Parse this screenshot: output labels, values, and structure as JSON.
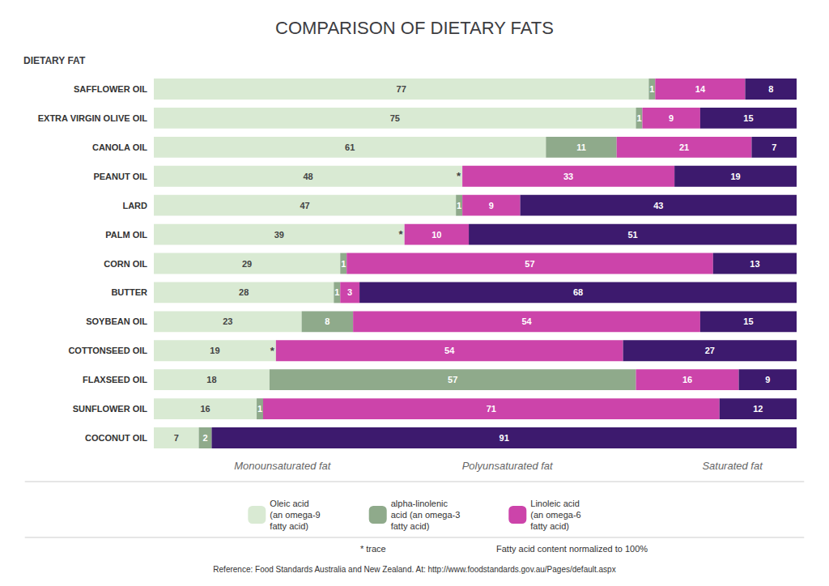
{
  "chart_data": {
    "type": "bar",
    "orientation": "horizontal",
    "stacked": true,
    "title": "COMPARISON OF DIETARY FATS",
    "ylabel": "DIETARY FAT",
    "categories": [
      "SAFFLOWER OIL",
      "EXTRA VIRGIN OLIVE OIL",
      "CANOLA OIL",
      "PEANUT OIL",
      "LARD",
      "PALM OIL",
      "CORN OIL",
      "BUTTER",
      "SOYBEAN OIL",
      "COTTONSEED OIL",
      "FLAXSEED OIL",
      "SUNFLOWER OIL",
      "COCONUT OIL"
    ],
    "series": [
      {
        "name": "Oleic acid\n(an omega-9\nfatty acid)",
        "color": "#d9ead3",
        "values": [
          77,
          75,
          61,
          48,
          47,
          39,
          29,
          28,
          23,
          19,
          18,
          16,
          7
        ]
      },
      {
        "name": "alpha-linolenic\nacid (an omega-3\nfatty acid)",
        "color": "#8faa8b",
        "values": [
          1,
          1,
          11,
          0,
          1,
          0,
          1,
          1,
          8,
          0,
          57,
          1,
          2
        ],
        "value_labels": [
          "1",
          "1",
          "11",
          "*",
          "1",
          "*",
          "1",
          "1",
          "8",
          "*",
          "57",
          "1",
          "2"
        ]
      },
      {
        "name": "Linoleic acid\n(an omega-6\nfatty acid)",
        "color": "#cc44aa",
        "values": [
          14,
          9,
          21,
          33,
          9,
          10,
          57,
          3,
          54,
          54,
          16,
          71,
          0
        ]
      },
      {
        "color": "#3d1a6e",
        "values": [
          8,
          15,
          7,
          19,
          43,
          51,
          13,
          68,
          15,
          27,
          9,
          12,
          91
        ]
      }
    ],
    "xlim": [
      0,
      100
    ],
    "tick_labels": "y",
    "grid": false,
    "legend": "bottom",
    "data_labels": true,
    "annotations": [
      {
        "text": "Monounsaturated fat",
        "x": 20
      },
      {
        "text": "Polyunsaturated fat",
        "x": 55
      },
      {
        "text": "Saturated fat",
        "x": 90
      }
    ],
    "notes": [
      "* trace",
      "Fatty acid content normalized to 100%"
    ],
    "source": "Reference: Food Standards Australia and New Zealand. At: http://www.foodstandards.gov.au/Pages/default.aspx"
  }
}
